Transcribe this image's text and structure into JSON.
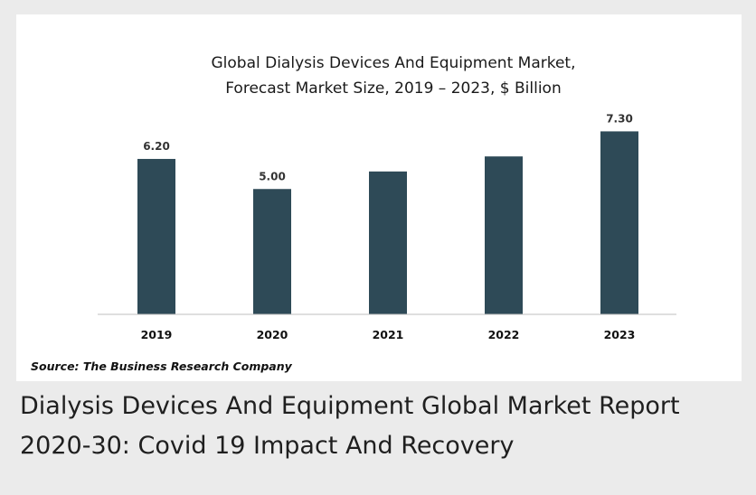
{
  "chart_data": {
    "type": "bar",
    "title_lines": [
      "Global Dialysis Devices And Equipment Market,",
      "Forecast Market Size, 2019 – 2023, $ Billion"
    ],
    "categories": [
      "2019",
      "2020",
      "2021",
      "2022",
      "2023"
    ],
    "values": [
      6.2,
      5.0,
      5.7,
      6.3,
      7.3
    ],
    "data_labels": [
      "6.20",
      "5.00",
      "",
      "",
      "7.30"
    ],
    "ylim": [
      0,
      8
    ],
    "grid": false,
    "legend": "none",
    "bar_color": "#2e4a57"
  },
  "source_text": "Source: The Business Research Company",
  "caption_lines": [
    "Dialysis Devices And Equipment Global Market Report",
    "2020-30: Covid 19 Impact And Recovery"
  ]
}
